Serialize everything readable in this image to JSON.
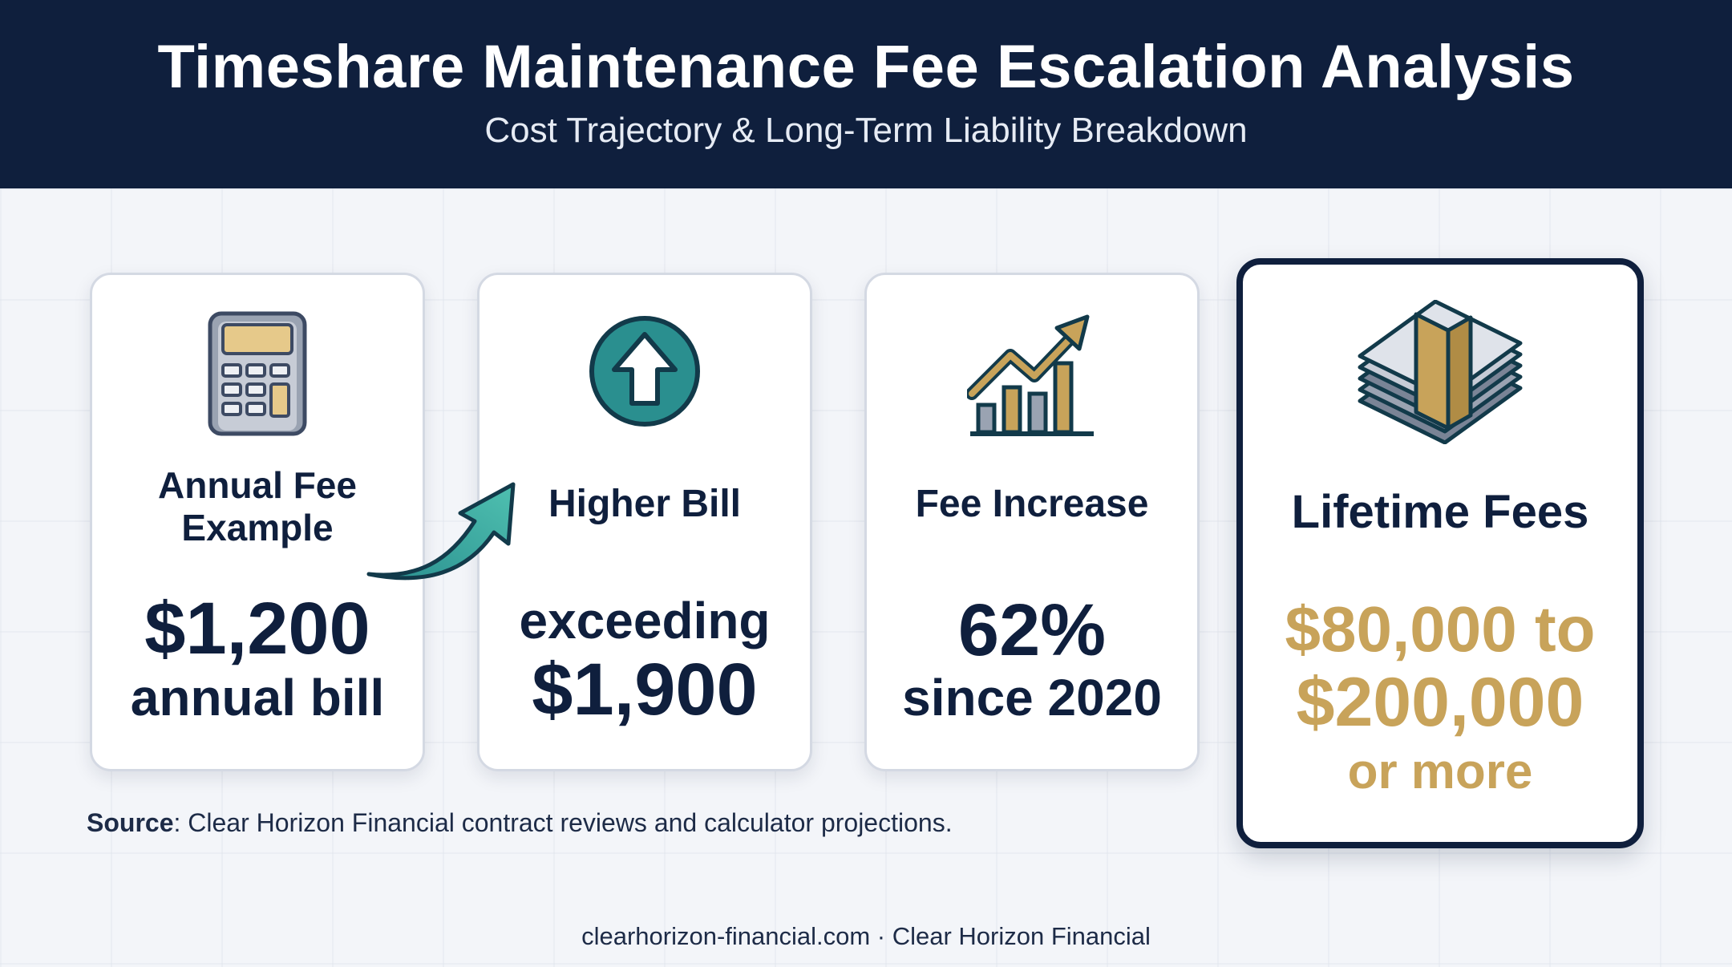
{
  "header": {
    "title": "Timeshare Maintenance Fee Escalation Analysis",
    "subtitle": "Cost Trajectory & Long-Term Liability Breakdown"
  },
  "cards": [
    {
      "icon": "calculator-icon",
      "label_line1": "Annual Fee",
      "label_line2": "Example",
      "value_line1": "$1,200",
      "value_line2": "annual bill"
    },
    {
      "icon": "up-arrow-circle-icon",
      "label": "Higher Bill",
      "value_line1": "exceeding",
      "value_line2": "$1,900"
    },
    {
      "icon": "growth-chart-icon",
      "label": "Fee Increase",
      "value_line1": "62%",
      "value_line2": "since 2020"
    },
    {
      "icon": "money-stack-icon",
      "label": "Lifetime Fees",
      "value_line1": "$80,000 to",
      "value_line2": "$200,000",
      "value_line3": "or more"
    }
  ],
  "source": {
    "label": "Source",
    "text": ": Clear Horizon Financial contract reviews and calculator projections."
  },
  "footer": "clearhorizon-financial.com · Clear Horizon Financial",
  "colors": {
    "navy": "#0f1f3d",
    "gold": "#c8a35a",
    "teal": "#2a8f8f",
    "background": "#f3f5f9"
  }
}
